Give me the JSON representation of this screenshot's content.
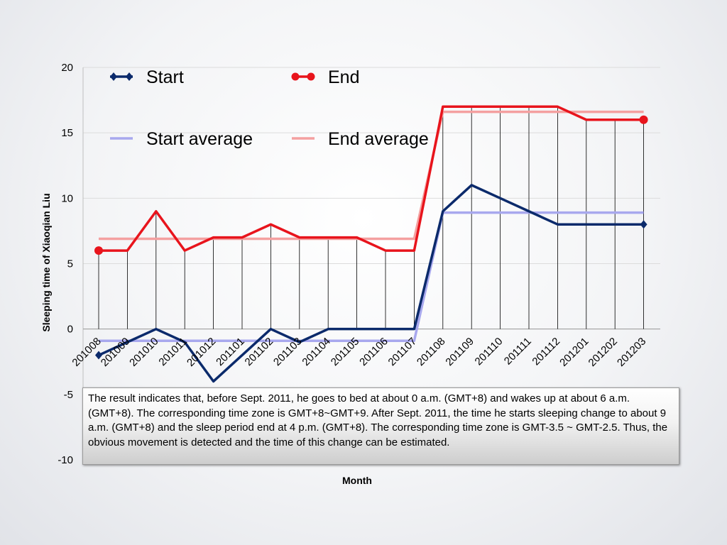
{
  "chart_data": {
    "type": "line",
    "categories": [
      "201008",
      "201009",
      "201010",
      "201011",
      "201012",
      "201101",
      "201102",
      "201103",
      "201104",
      "201105",
      "201106",
      "201107",
      "201108",
      "201109",
      "201110",
      "201111",
      "201112",
      "201201",
      "201202",
      "201203"
    ],
    "series": [
      {
        "name": "Start",
        "color": "#0b2a6b",
        "marker": "diamond",
        "values": [
          -2,
          -1,
          0,
          -1,
          -4,
          -2,
          0,
          -1,
          0,
          0,
          0,
          0,
          9,
          11,
          10,
          9,
          8,
          8,
          8,
          8
        ]
      },
      {
        "name": "End",
        "color": "#e8141c",
        "marker": "circle",
        "values": [
          6,
          6,
          9,
          6,
          7,
          7,
          8,
          7,
          7,
          7,
          6,
          6,
          17,
          17,
          17,
          17,
          17,
          16,
          16,
          16
        ]
      },
      {
        "name": "Start average",
        "color": "#a8a8ee",
        "marker": "none",
        "values": [
          -0.9,
          -0.9,
          -0.9,
          -0.9,
          -0.9,
          -0.9,
          -0.9,
          -0.9,
          -0.9,
          -0.9,
          -0.9,
          -0.9,
          8.9,
          8.9,
          8.9,
          8.9,
          8.9,
          8.9,
          8.9,
          8.9
        ]
      },
      {
        "name": "End average",
        "color": "#f4a0a0",
        "marker": "none",
        "values": [
          6.9,
          6.9,
          6.9,
          6.9,
          6.9,
          6.9,
          6.9,
          6.9,
          6.9,
          6.9,
          6.9,
          6.9,
          16.6,
          16.6,
          16.6,
          16.6,
          16.6,
          16.6,
          16.6,
          16.6
        ]
      }
    ],
    "title": "",
    "xlabel": "Month",
    "ylabel": "Sleeping time of Xiaoqian Liu",
    "ylim": [
      -10,
      20
    ],
    "yticks": [
      20,
      15,
      10,
      5,
      0,
      -5,
      -10
    ],
    "grid": true,
    "legend_position": "top-left"
  },
  "annotation": {
    "text": "The result indicates that, before Sept. 2011, he goes to bed at about 0 a.m. (GMT+8) and wakes up at about 6 a.m. (GMT+8). The corresponding time zone is GMT+8~GMT+9. After Sept. 2011, the time he starts sleeping change to about 9 a.m. (GMT+8) and the sleep period end at 4 p.m. (GMT+8). The corresponding time zone is GMT-3.5 ~ GMT-2.5. Thus, the obvious movement is detected and the time of this change can be estimated."
  }
}
